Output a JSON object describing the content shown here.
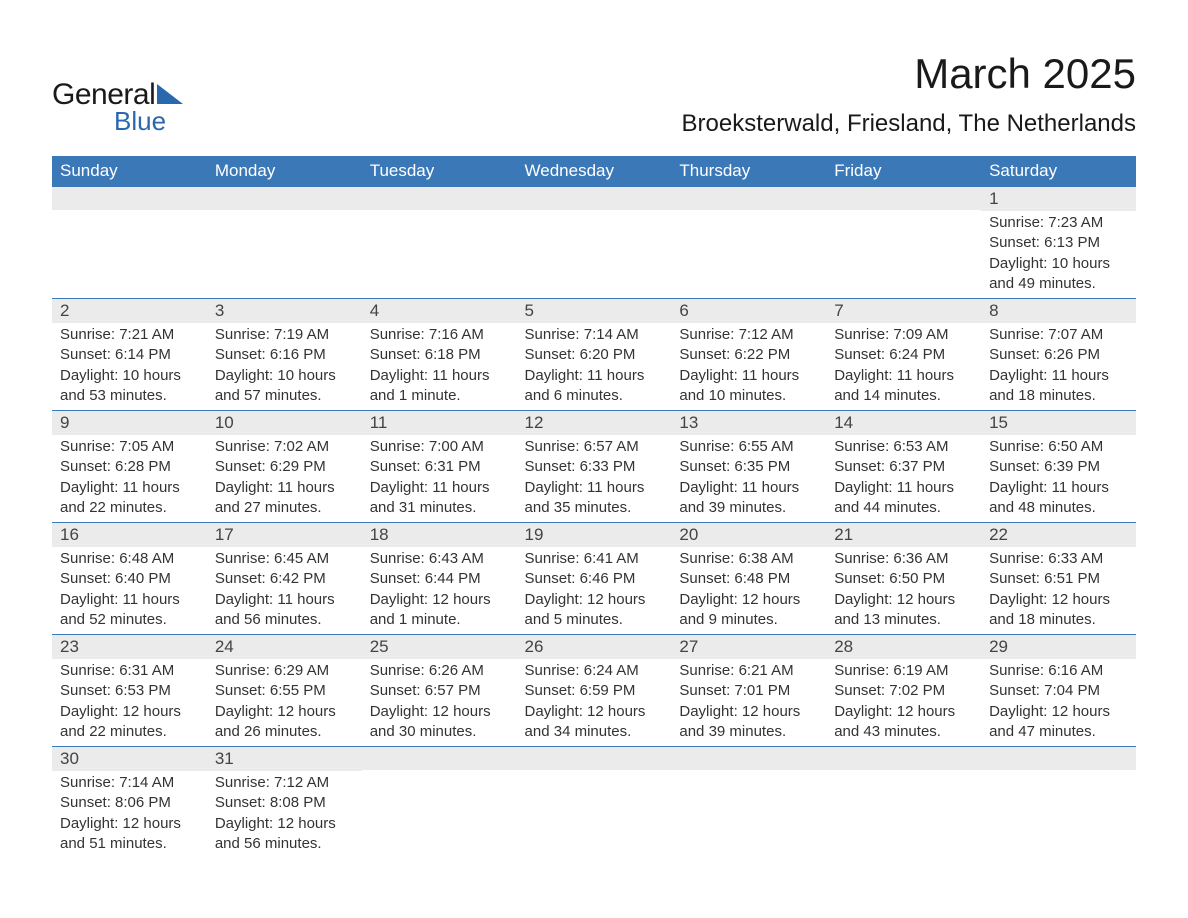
{
  "logo": {
    "word1": "General",
    "word2": "Blue",
    "accent_color": "#2a68ad"
  },
  "header": {
    "title": "March 2025",
    "location": "Broeksterwald, Friesland, The Netherlands"
  },
  "weekdays": [
    "Sunday",
    "Monday",
    "Tuesday",
    "Wednesday",
    "Thursday",
    "Friday",
    "Saturday"
  ],
  "colors": {
    "header_bg": "#3b78b8",
    "header_fg": "#ffffff",
    "daybar_bg": "#ebebeb",
    "daybar_border": "#3b78b8",
    "text": "#333333",
    "background": "#ffffff"
  },
  "typography": {
    "title_fontsize": 42,
    "location_fontsize": 24,
    "weekday_fontsize": 17,
    "daynum_fontsize": 17,
    "body_fontsize": 15
  },
  "grid": {
    "rows": 6,
    "cols": 7,
    "days": [
      null,
      null,
      null,
      null,
      null,
      null,
      {
        "n": "1",
        "sunrise": "7:23 AM",
        "sunset": "6:13 PM",
        "daylight": "10 hours and 49 minutes."
      },
      {
        "n": "2",
        "sunrise": "7:21 AM",
        "sunset": "6:14 PM",
        "daylight": "10 hours and 53 minutes."
      },
      {
        "n": "3",
        "sunrise": "7:19 AM",
        "sunset": "6:16 PM",
        "daylight": "10 hours and 57 minutes."
      },
      {
        "n": "4",
        "sunrise": "7:16 AM",
        "sunset": "6:18 PM",
        "daylight": "11 hours and 1 minute."
      },
      {
        "n": "5",
        "sunrise": "7:14 AM",
        "sunset": "6:20 PM",
        "daylight": "11 hours and 6 minutes."
      },
      {
        "n": "6",
        "sunrise": "7:12 AM",
        "sunset": "6:22 PM",
        "daylight": "11 hours and 10 minutes."
      },
      {
        "n": "7",
        "sunrise": "7:09 AM",
        "sunset": "6:24 PM",
        "daylight": "11 hours and 14 minutes."
      },
      {
        "n": "8",
        "sunrise": "7:07 AM",
        "sunset": "6:26 PM",
        "daylight": "11 hours and 18 minutes."
      },
      {
        "n": "9",
        "sunrise": "7:05 AM",
        "sunset": "6:28 PM",
        "daylight": "11 hours and 22 minutes."
      },
      {
        "n": "10",
        "sunrise": "7:02 AM",
        "sunset": "6:29 PM",
        "daylight": "11 hours and 27 minutes."
      },
      {
        "n": "11",
        "sunrise": "7:00 AM",
        "sunset": "6:31 PM",
        "daylight": "11 hours and 31 minutes."
      },
      {
        "n": "12",
        "sunrise": "6:57 AM",
        "sunset": "6:33 PM",
        "daylight": "11 hours and 35 minutes."
      },
      {
        "n": "13",
        "sunrise": "6:55 AM",
        "sunset": "6:35 PM",
        "daylight": "11 hours and 39 minutes."
      },
      {
        "n": "14",
        "sunrise": "6:53 AM",
        "sunset": "6:37 PM",
        "daylight": "11 hours and 44 minutes."
      },
      {
        "n": "15",
        "sunrise": "6:50 AM",
        "sunset": "6:39 PM",
        "daylight": "11 hours and 48 minutes."
      },
      {
        "n": "16",
        "sunrise": "6:48 AM",
        "sunset": "6:40 PM",
        "daylight": "11 hours and 52 minutes."
      },
      {
        "n": "17",
        "sunrise": "6:45 AM",
        "sunset": "6:42 PM",
        "daylight": "11 hours and 56 minutes."
      },
      {
        "n": "18",
        "sunrise": "6:43 AM",
        "sunset": "6:44 PM",
        "daylight": "12 hours and 1 minute."
      },
      {
        "n": "19",
        "sunrise": "6:41 AM",
        "sunset": "6:46 PM",
        "daylight": "12 hours and 5 minutes."
      },
      {
        "n": "20",
        "sunrise": "6:38 AM",
        "sunset": "6:48 PM",
        "daylight": "12 hours and 9 minutes."
      },
      {
        "n": "21",
        "sunrise": "6:36 AM",
        "sunset": "6:50 PM",
        "daylight": "12 hours and 13 minutes."
      },
      {
        "n": "22",
        "sunrise": "6:33 AM",
        "sunset": "6:51 PM",
        "daylight": "12 hours and 18 minutes."
      },
      {
        "n": "23",
        "sunrise": "6:31 AM",
        "sunset": "6:53 PM",
        "daylight": "12 hours and 22 minutes."
      },
      {
        "n": "24",
        "sunrise": "6:29 AM",
        "sunset": "6:55 PM",
        "daylight": "12 hours and 26 minutes."
      },
      {
        "n": "25",
        "sunrise": "6:26 AM",
        "sunset": "6:57 PM",
        "daylight": "12 hours and 30 minutes."
      },
      {
        "n": "26",
        "sunrise": "6:24 AM",
        "sunset": "6:59 PM",
        "daylight": "12 hours and 34 minutes."
      },
      {
        "n": "27",
        "sunrise": "6:21 AM",
        "sunset": "7:01 PM",
        "daylight": "12 hours and 39 minutes."
      },
      {
        "n": "28",
        "sunrise": "6:19 AM",
        "sunset": "7:02 PM",
        "daylight": "12 hours and 43 minutes."
      },
      {
        "n": "29",
        "sunrise": "6:16 AM",
        "sunset": "7:04 PM",
        "daylight": "12 hours and 47 minutes."
      },
      {
        "n": "30",
        "sunrise": "7:14 AM",
        "sunset": "8:06 PM",
        "daylight": "12 hours and 51 minutes."
      },
      {
        "n": "31",
        "sunrise": "7:12 AM",
        "sunset": "8:08 PM",
        "daylight": "12 hours and 56 minutes."
      },
      null,
      null,
      null,
      null,
      null
    ]
  },
  "labels": {
    "sunrise_prefix": "Sunrise: ",
    "sunset_prefix": "Sunset: ",
    "daylight_prefix": "Daylight: "
  }
}
